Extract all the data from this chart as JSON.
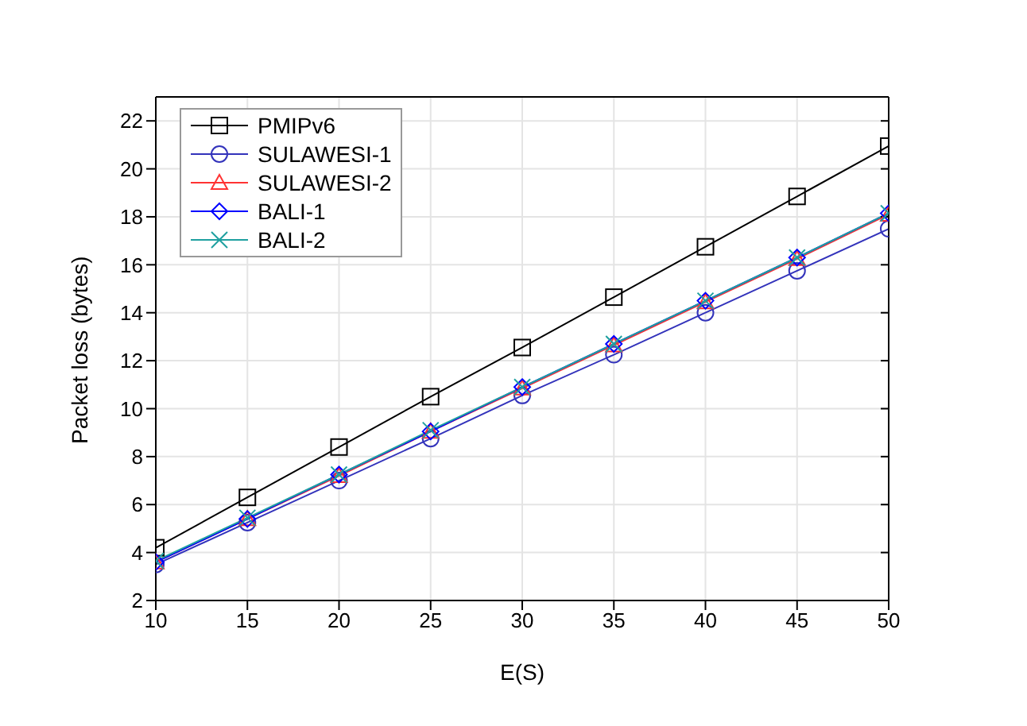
{
  "chart_data": {
    "type": "line",
    "xlabel": "E(S)",
    "ylabel": "Packet loss (bytes)",
    "x": [
      10,
      15,
      20,
      25,
      30,
      35,
      40,
      45,
      50
    ],
    "series": [
      {
        "name": "PMIPv6",
        "color": "#000000",
        "marker": "square",
        "values": [
          4.2,
          6.3,
          8.4,
          10.5,
          12.55,
          14.65,
          16.75,
          18.85,
          20.95
        ]
      },
      {
        "name": "SULAWESI-1",
        "color": "#3333bb",
        "marker": "circle",
        "values": [
          3.5,
          5.25,
          7.0,
          8.75,
          10.55,
          12.25,
          14.0,
          15.75,
          17.5
        ]
      },
      {
        "name": "SULAWESI-2",
        "color": "#ff3333",
        "marker": "triangle",
        "values": [
          3.6,
          5.4,
          7.2,
          9.05,
          10.85,
          12.65,
          14.45,
          16.25,
          18.1
        ]
      },
      {
        "name": "BALI-1",
        "color": "#0000ff",
        "marker": "diamond",
        "values": [
          3.6,
          5.4,
          7.25,
          9.05,
          10.9,
          12.7,
          14.5,
          16.3,
          18.15
        ]
      },
      {
        "name": "BALI-2",
        "color": "#1fa0a0",
        "marker": "cross",
        "values": [
          3.65,
          5.45,
          7.25,
          9.1,
          10.9,
          12.7,
          14.5,
          16.3,
          18.15
        ]
      }
    ],
    "xlim": [
      10,
      50
    ],
    "xticks": [
      10,
      15,
      20,
      25,
      30,
      35,
      40,
      45,
      50
    ],
    "ylim": [
      2,
      23
    ],
    "yticks": [
      2,
      4,
      6,
      8,
      10,
      12,
      14,
      16,
      18,
      20,
      22
    ],
    "grid": true,
    "legend": "top left",
    "line_style": "solid"
  }
}
